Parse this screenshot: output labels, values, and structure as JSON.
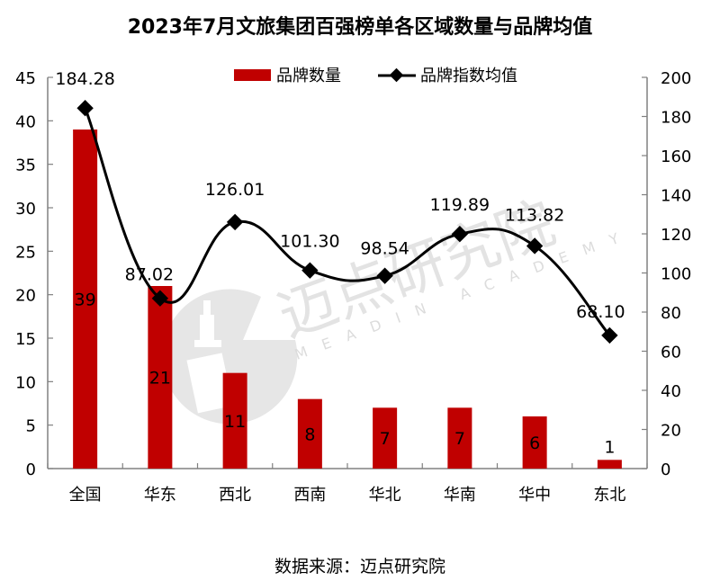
{
  "title": "2023年7月文旅集团百强榜单各区域数量与品牌均值",
  "source": "数据来源：迈点研究院",
  "watermark": {
    "cn": "迈点研究院",
    "en": "MEADIN ACADEMY"
  },
  "colors": {
    "bar": "#c00000",
    "line": "#000000",
    "axis": "#808080",
    "watermark": "#d9d9d9"
  },
  "legend": [
    {
      "name": "品牌数量",
      "type": "bar"
    },
    {
      "name": "品牌指数均值",
      "type": "line-diamond"
    }
  ],
  "chart_data": {
    "type": "bar+line",
    "title": "2023年7月文旅集团百强榜单各区域数量与品牌均值",
    "categories": [
      "全国",
      "华东",
      "西北",
      "西南",
      "华北",
      "华南",
      "华中",
      "东北"
    ],
    "series": [
      {
        "name": "品牌数量",
        "type": "bar",
        "axis": "left",
        "values": [
          39,
          21,
          11,
          8,
          7,
          7,
          6,
          1
        ],
        "labels": [
          "39",
          "21",
          "11",
          "8",
          "7",
          "7",
          "6",
          "1"
        ]
      },
      {
        "name": "品牌指数均值",
        "type": "line",
        "axis": "right",
        "smooth": true,
        "marker": "diamond",
        "values": [
          184.28,
          87.02,
          126.01,
          101.3,
          98.54,
          119.89,
          113.82,
          68.1
        ],
        "labels": [
          "184.28",
          "87.02",
          "126.01",
          "101.30",
          "98.54",
          "119.89",
          "113.82",
          "68.10"
        ]
      }
    ],
    "left_axis": {
      "min": 0,
      "max": 45,
      "step": 5,
      "ticks": [
        "0",
        "5",
        "10",
        "15",
        "20",
        "25",
        "30",
        "35",
        "40",
        "45"
      ]
    },
    "right_axis": {
      "min": 0,
      "max": 200,
      "step": 20,
      "ticks": [
        "0",
        "20",
        "40",
        "60",
        "80",
        "100",
        "120",
        "140",
        "160",
        "180",
        "200"
      ]
    },
    "xlabel": "",
    "ylabel": "",
    "grid": false,
    "legend_position": "top"
  }
}
